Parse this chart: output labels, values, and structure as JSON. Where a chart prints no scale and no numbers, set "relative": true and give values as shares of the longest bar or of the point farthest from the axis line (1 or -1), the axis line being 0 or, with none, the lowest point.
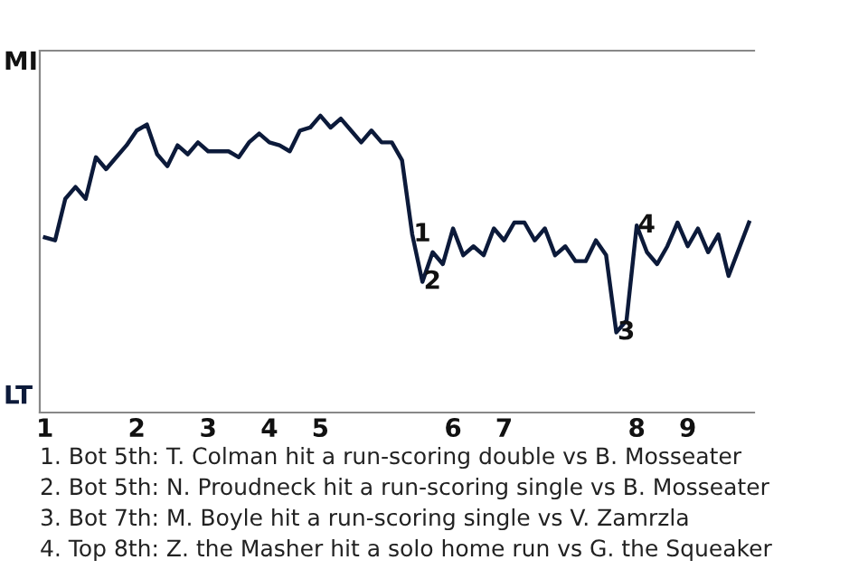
{
  "chart_data": {
    "type": "line",
    "relative": true,
    "categories": [
      "1",
      null,
      null,
      null,
      null,
      null,
      null,
      null,
      null,
      "2",
      null,
      null,
      null,
      null,
      null,
      null,
      "3",
      null,
      null,
      null,
      null,
      null,
      "4",
      null,
      null,
      null,
      null,
      "5",
      null,
      null,
      null,
      null,
      null,
      null,
      null,
      null,
      null,
      null,
      null,
      null,
      "6",
      null,
      null,
      null,
      null,
      "7",
      null,
      null,
      null,
      null,
      null,
      null,
      null,
      null,
      null,
      null,
      null,
      null,
      "8",
      null,
      null,
      null,
      null,
      "9",
      null,
      null,
      null,
      null,
      null,
      null
    ],
    "series": [
      {
        "color": "#0c1a3a",
        "values": [
          0.59,
          0.58,
          0.72,
          0.76,
          0.72,
          0.86,
          0.82,
          0.86,
          0.9,
          0.95,
          0.97,
          0.87,
          0.83,
          0.9,
          0.87,
          0.91,
          0.88,
          0.88,
          0.88,
          0.86,
          0.91,
          0.94,
          0.91,
          0.9,
          0.88,
          0.95,
          0.96,
          1,
          0.96,
          0.99,
          0.95,
          0.91,
          0.95,
          0.91,
          0.91,
          0.85,
          0.6,
          0.44,
          0.54,
          0.5,
          0.62,
          0.53,
          0.56,
          0.53,
          0.62,
          0.58,
          0.64,
          0.64,
          0.58,
          0.62,
          0.53,
          0.56,
          0.51,
          0.51,
          0.58,
          0.53,
          0.27,
          0.31,
          0.63,
          0.54,
          0.5,
          0.56,
          0.64,
          0.56,
          0.62,
          0.54,
          0.6,
          0.46,
          0.55,
          0.64
        ]
      }
    ],
    "marker": "none",
    "line_style": "solid",
    "annotations": [
      {
        "text": "1",
        "y": 0.6
      },
      {
        "text": "2",
        "y": 0.44
      },
      {
        "text": "3",
        "y": 0.27
      },
      {
        "text": "4",
        "y": 0.63
      },
      "MI",
      "LT",
      "1. Bot 5th: T. Colman hit a run-scoring double vs B. Mosseater",
      "2. Bot 5th: N. Proudneck hit a run-scoring single vs B. Mosseater",
      "3. Bot 7th: M. Boyle hit a run-scoring single vs V. Zamrzla",
      "4. Top 8th: Z. the Masher hit a solo home run vs G. the Squeaker"
    ]
  }
}
